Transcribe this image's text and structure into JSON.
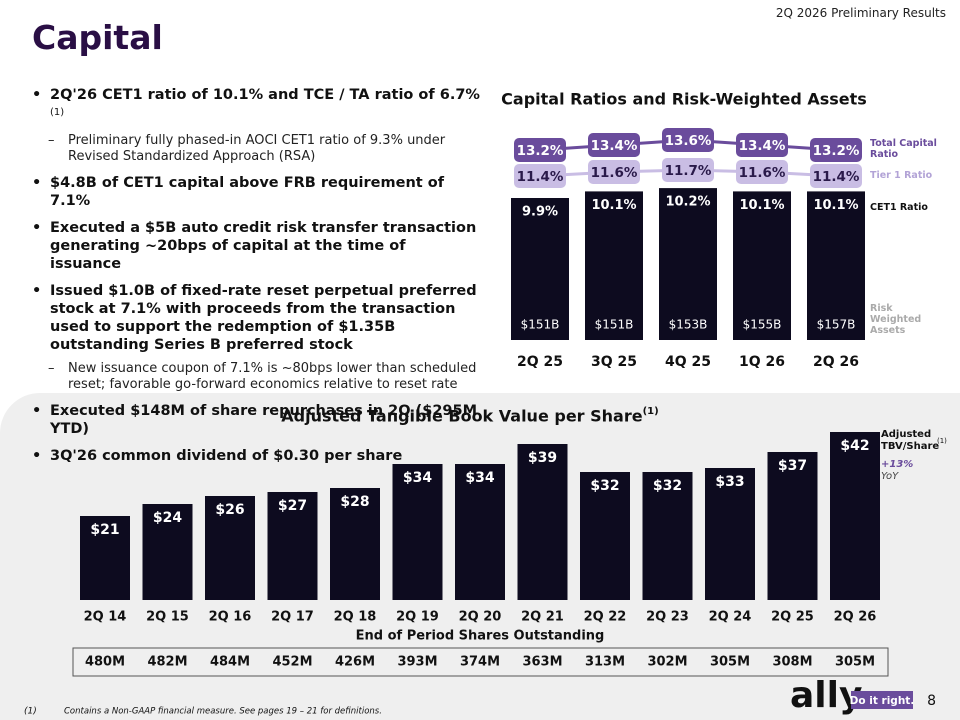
{
  "header": {
    "title": "Capital",
    "report": "2Q 2026 Preliminary Results"
  },
  "bullets": [
    {
      "text": "2Q'26 CET1 ratio of 10.1% and TCE / TA ratio of 6.7%",
      "note": "(1)",
      "level": 1
    },
    {
      "text": "Preliminary fully phased-in AOCI CET1 ratio of 9.3% under Revised Standardized Approach (RSA)",
      "level": 2
    },
    {
      "text": "$4.8B of CET1 capital above FRB requirement of 7.1%",
      "level": 1
    },
    {
      "text": "Executed a $5B auto credit risk transfer transaction generating ~20bps of capital at the time of issuance",
      "level": 1
    },
    {
      "text": "Issued $1.0B of fixed-rate reset perpetual preferred stock at 7.1% with proceeds from the transaction used to support the redemption of $1.35B outstanding Series B preferred stock",
      "level": 1
    },
    {
      "text": "New issuance coupon of 7.1% is ~80bps lower than scheduled reset; favorable go-forward economics relative to reset rate",
      "level": 2
    },
    {
      "text": "Executed $148M of share repurchases in 2Q ($295M YTD)",
      "level": 1
    },
    {
      "text": "3Q'26 common dividend of $0.30 per share",
      "level": 1
    }
  ],
  "chart_data": [
    {
      "type": "ratio-bar",
      "title": "Capital Ratios and Risk-Weighted Assets",
      "categories": [
        "2Q 25",
        "3Q 25",
        "4Q 25",
        "1Q 26",
        "2Q 26"
      ],
      "series": [
        {
          "name": "Total Capital Ratio",
          "color": "#6a4c9c",
          "values": [
            13.2,
            13.4,
            13.6,
            13.4,
            13.2
          ],
          "value_labels": [
            "13.2%",
            "13.4%",
            "13.6%",
            "13.4%",
            "13.2%"
          ]
        },
        {
          "name": "Tier 1 Ratio",
          "color": "#c9bde4",
          "values": [
            11.4,
            11.6,
            11.7,
            11.6,
            11.4
          ],
          "value_labels": [
            "11.4%",
            "11.6%",
            "11.7%",
            "11.6%",
            "11.4%"
          ]
        },
        {
          "name": "CET1 Ratio",
          "color": "#0d0b1f",
          "values": [
            9.9,
            10.1,
            10.2,
            10.1,
            10.1
          ],
          "value_labels": [
            "9.9%",
            "10.1%",
            "10.2%",
            "10.1%",
            "10.1%"
          ]
        }
      ],
      "rwa_name": "Risk Weighted Assets",
      "rwa_labels": [
        "$151B",
        "$151B",
        "$153B",
        "$155B",
        "$157B"
      ]
    },
    {
      "type": "bar",
      "title": "Adjusted Tangible Book Value per Share",
      "title_note": "(1)",
      "categories": [
        "2Q 14",
        "2Q 15",
        "2Q 16",
        "2Q 17",
        "2Q 18",
        "2Q 19",
        "2Q 20",
        "2Q 21",
        "2Q 22",
        "2Q 23",
        "2Q 24",
        "2Q 25",
        "2Q 26"
      ],
      "values": [
        21,
        24,
        26,
        27,
        28,
        34,
        34,
        39,
        32,
        32,
        33,
        37,
        42
      ],
      "value_labels": [
        "$21",
        "$24",
        "$26",
        "$27",
        "$28",
        "$34",
        "$34",
        "$39",
        "$32",
        "$32",
        "$33",
        "$37",
        "$42"
      ],
      "color": "#0d0b1f",
      "legend": "Adjusted TBV/Share",
      "legend_note": "(1)",
      "growth": "+13%",
      "growth_label": "YoY",
      "xlabel": "End of Period Shares Outstanding",
      "shares": [
        "480M",
        "482M",
        "484M",
        "452M",
        "426M",
        "393M",
        "374M",
        "363M",
        "313M",
        "302M",
        "305M",
        "308M",
        "305M"
      ]
    }
  ],
  "footer": {
    "note_marker": "(1)",
    "note": "Contains a Non-GAAP financial measure. See pages 19 – 21 for definitions.",
    "logo": "ally",
    "tagline": "Do it right.",
    "page": "8"
  }
}
